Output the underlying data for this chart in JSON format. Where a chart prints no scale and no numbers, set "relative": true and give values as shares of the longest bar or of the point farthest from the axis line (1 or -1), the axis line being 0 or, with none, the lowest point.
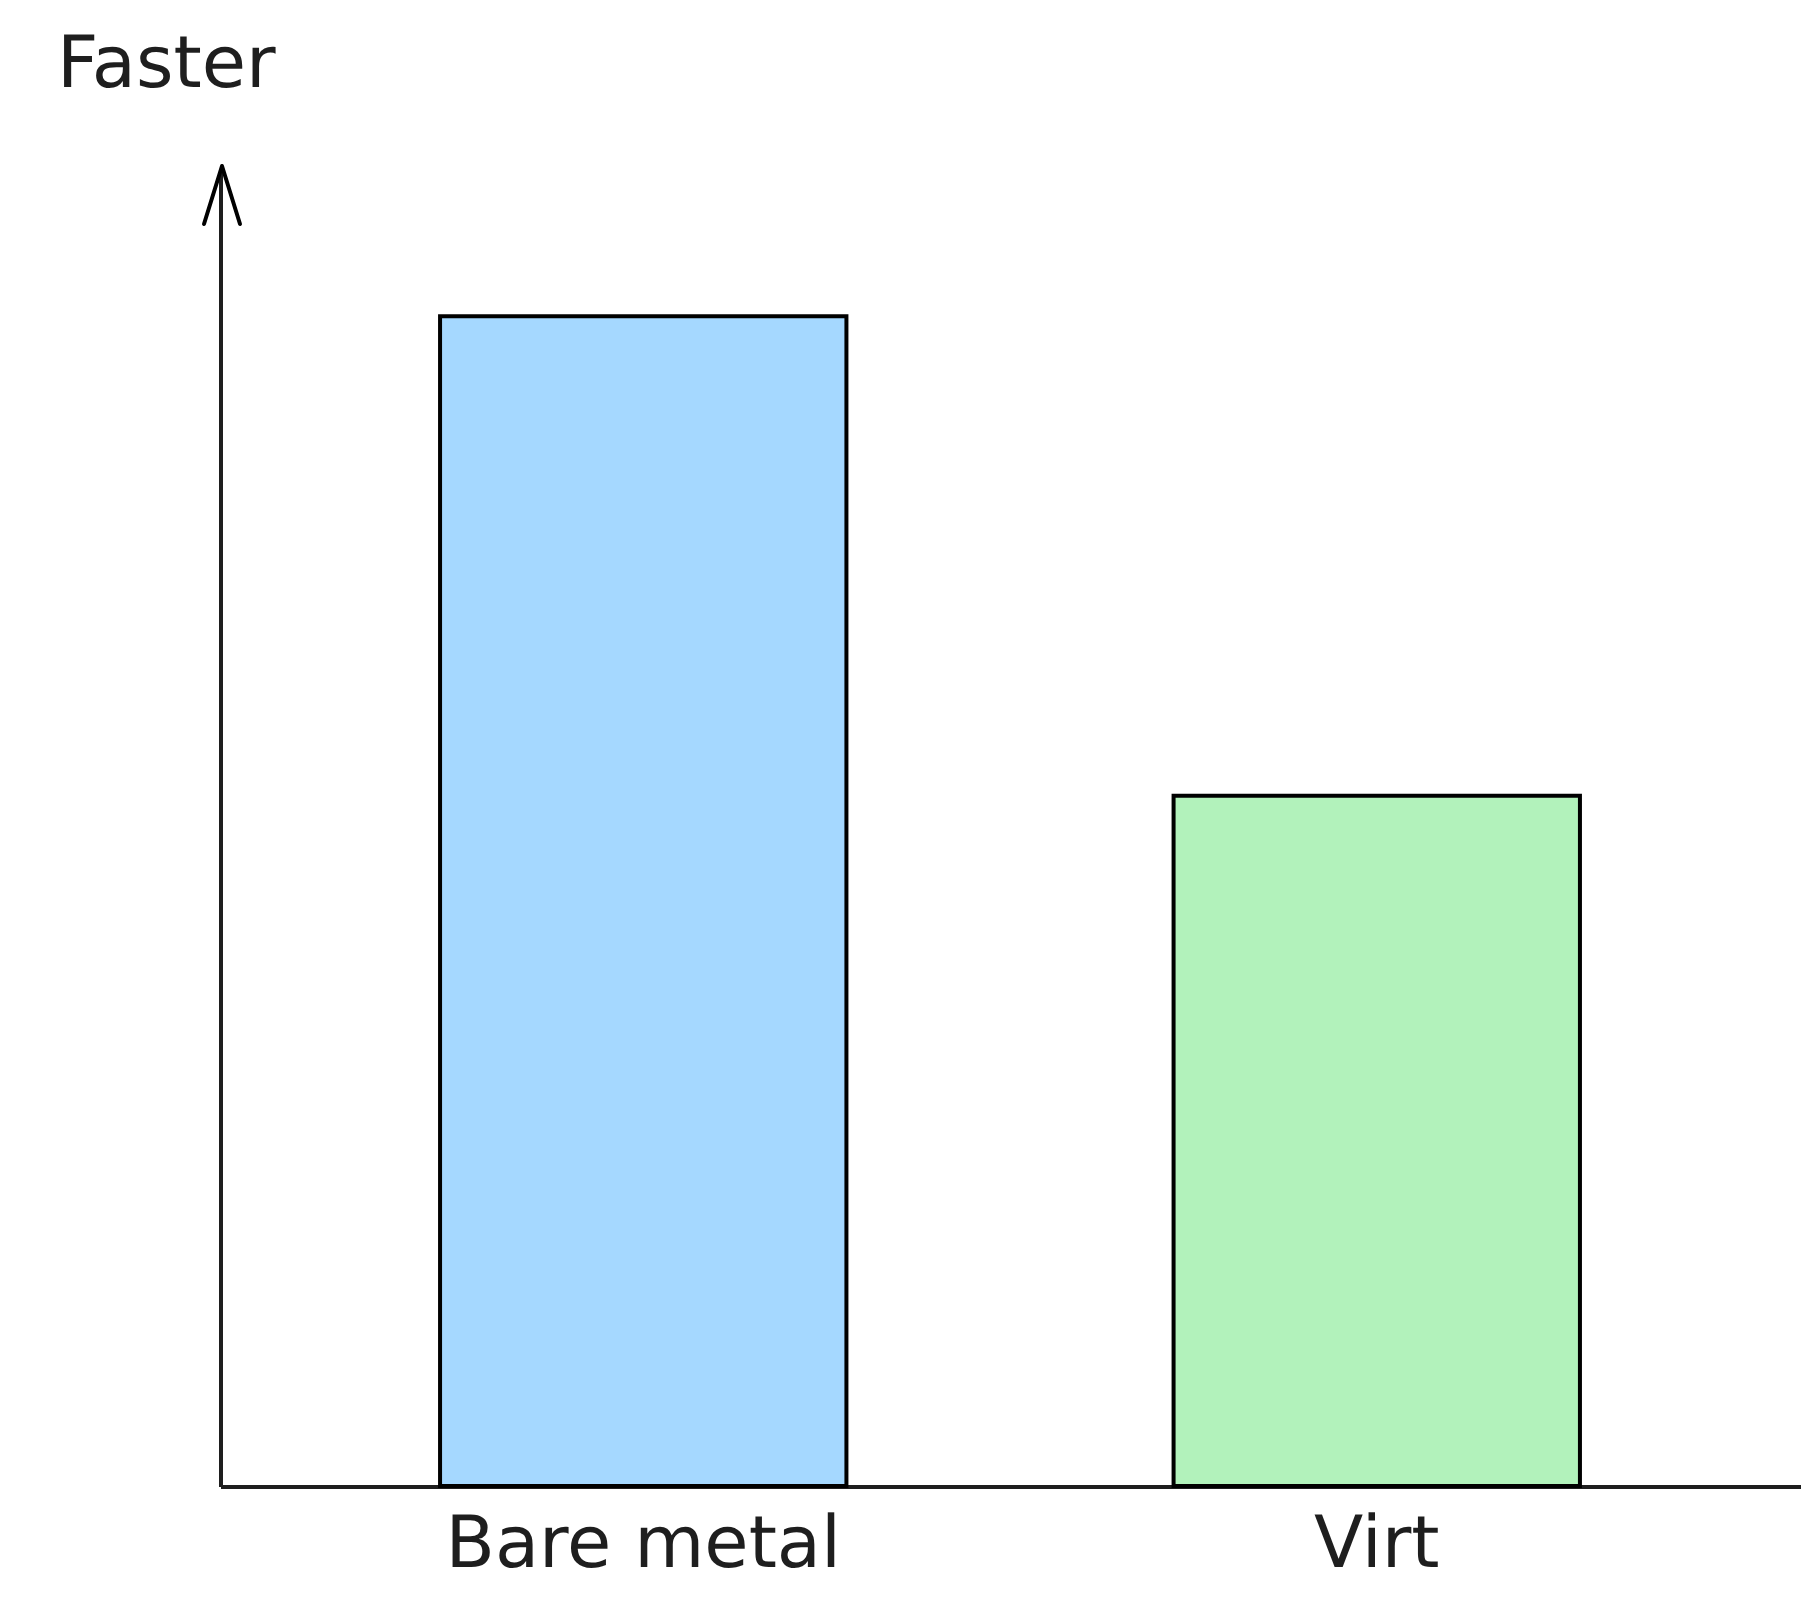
{
  "chart_data": {
    "type": "bar",
    "relative": true,
    "ylabel": "Faster",
    "categories": [
      "Bare metal",
      "Virt"
    ],
    "values": [
      1,
      0.59
    ],
    "colors": [
      "#a5d8ff",
      "#b2f2bb"
    ]
  }
}
